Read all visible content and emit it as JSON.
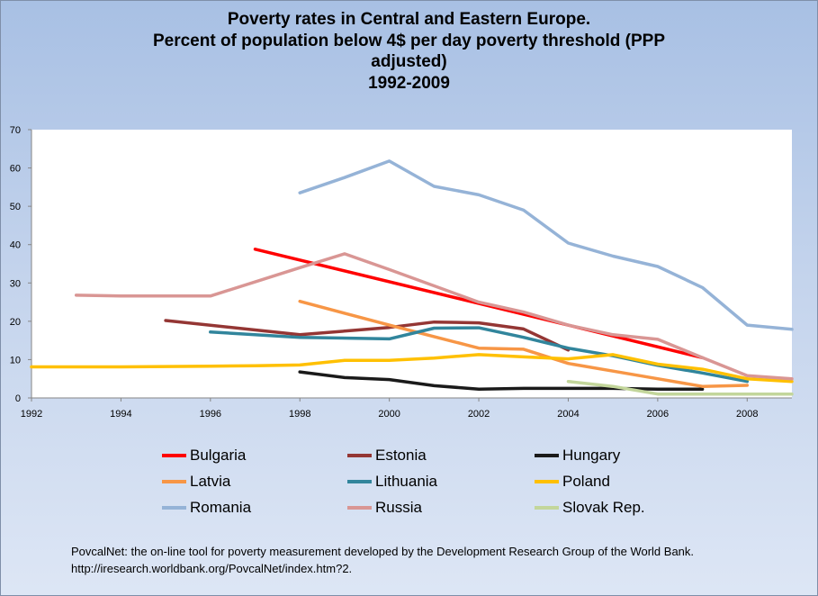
{
  "chart_data": {
    "type": "line",
    "title": [
      "Poverty rates in Central and Eastern Europe.",
      "Percent of population below 4$ per day poverty threshold (PPP",
      "adjusted)",
      "1992-2009"
    ],
    "xlabel": "",
    "ylabel": "",
    "xlim": [
      1992,
      2009
    ],
    "ylim": [
      0,
      70
    ],
    "x_ticks": [
      "1992",
      "1994",
      "1996",
      "1998",
      "2000",
      "2002",
      "2004",
      "2006",
      "2008"
    ],
    "y_ticks": [
      "0",
      "10",
      "20",
      "30",
      "40",
      "50",
      "60",
      "70"
    ],
    "series": [
      {
        "name": "Bulgaria",
        "color": "#ff0000",
        "points": [
          [
            1997,
            38.8
          ],
          [
            2007,
            10.5
          ]
        ]
      },
      {
        "name": "Estonia",
        "color": "#943634",
        "points": [
          [
            1995,
            20.2
          ],
          [
            1998,
            16.5
          ],
          [
            2000,
            18.4
          ],
          [
            2001,
            19.8
          ],
          [
            2002,
            19.6
          ],
          [
            2003,
            18.0
          ],
          [
            2004,
            12.5
          ]
        ]
      },
      {
        "name": "Hungary",
        "color": "#1a1a1a",
        "points": [
          [
            1998,
            6.8
          ],
          [
            1999,
            5.3
          ],
          [
            2000,
            4.8
          ],
          [
            2001,
            3.2
          ],
          [
            2002,
            2.3
          ],
          [
            2003,
            2.5
          ],
          [
            2004,
            2.5
          ],
          [
            2005,
            2.5
          ],
          [
            2006,
            2.3
          ],
          [
            2007,
            2.3
          ]
        ]
      },
      {
        "name": "Latvia",
        "color": "#f79646",
        "points": [
          [
            1998,
            25.2
          ],
          [
            2000,
            19.0
          ],
          [
            2001,
            16.0
          ],
          [
            2002,
            13.0
          ],
          [
            2003,
            12.7
          ],
          [
            2004,
            9.0
          ],
          [
            2005,
            7.0
          ],
          [
            2006,
            5.0
          ],
          [
            2007,
            3.0
          ],
          [
            2008,
            3.3
          ]
        ]
      },
      {
        "name": "Lithuania",
        "color": "#31859c",
        "points": [
          [
            1996,
            17.2
          ],
          [
            1998,
            15.8
          ],
          [
            2000,
            15.4
          ],
          [
            2001,
            18.2
          ],
          [
            2002,
            18.3
          ],
          [
            2003,
            15.8
          ],
          [
            2004,
            13.0
          ],
          [
            2005,
            11.0
          ],
          [
            2006,
            8.5
          ],
          [
            2007,
            6.5
          ],
          [
            2008,
            4.3
          ]
        ]
      },
      {
        "name": "Poland",
        "color": "#ffc000",
        "points": [
          [
            1992,
            8.1
          ],
          [
            1994,
            8.1
          ],
          [
            1995,
            8.2
          ],
          [
            1996,
            8.3
          ],
          [
            1997,
            8.4
          ],
          [
            1998,
            8.6
          ],
          [
            1999,
            9.8
          ],
          [
            2000,
            9.8
          ],
          [
            2001,
            10.4
          ],
          [
            2002,
            11.3
          ],
          [
            2003,
            10.7
          ],
          [
            2004,
            10.2
          ],
          [
            2005,
            11.3
          ],
          [
            2006,
            8.8
          ],
          [
            2007,
            7.5
          ],
          [
            2008,
            5.0
          ],
          [
            2009,
            4.3
          ]
        ]
      },
      {
        "name": "Romania",
        "color": "#95b3d7",
        "points": [
          [
            1998,
            53.5
          ],
          [
            1999,
            57.5
          ],
          [
            2000,
            61.8
          ],
          [
            2001,
            55.2
          ],
          [
            2002,
            53.0
          ],
          [
            2003,
            49.0
          ],
          [
            2004,
            40.4
          ],
          [
            2005,
            37.0
          ],
          [
            2006,
            34.3
          ],
          [
            2007,
            28.8
          ],
          [
            2008,
            19.0
          ],
          [
            2009,
            17.9
          ]
        ]
      },
      {
        "name": "Russia",
        "color": "#d99694",
        "points": [
          [
            1993,
            26.8
          ],
          [
            1994,
            26.6
          ],
          [
            1996,
            26.6
          ],
          [
            1998,
            34.0
          ],
          [
            1999,
            37.6
          ],
          [
            2000,
            33.5
          ],
          [
            2002,
            25.0
          ],
          [
            2003,
            22.4
          ],
          [
            2004,
            19.0
          ],
          [
            2005,
            16.5
          ],
          [
            2006,
            15.3
          ],
          [
            2007,
            10.5
          ],
          [
            2008,
            5.8
          ],
          [
            2009,
            5.0
          ]
        ]
      },
      {
        "name": "Slovak Rep.",
        "color": "#c3d69b",
        "points": [
          [
            2004,
            4.3
          ],
          [
            2005,
            3.0
          ],
          [
            2006,
            1.0
          ],
          [
            2007,
            1.0
          ],
          [
            2008,
            1.0
          ],
          [
            2009,
            1.0
          ]
        ]
      }
    ]
  },
  "source": {
    "line1": "PovcalNet: the on-line tool for poverty measurement developed by the Development Research Group of the World Bank.",
    "line2": "http://iresearch.worldbank.org/PovcalNet/index.htm?2."
  }
}
